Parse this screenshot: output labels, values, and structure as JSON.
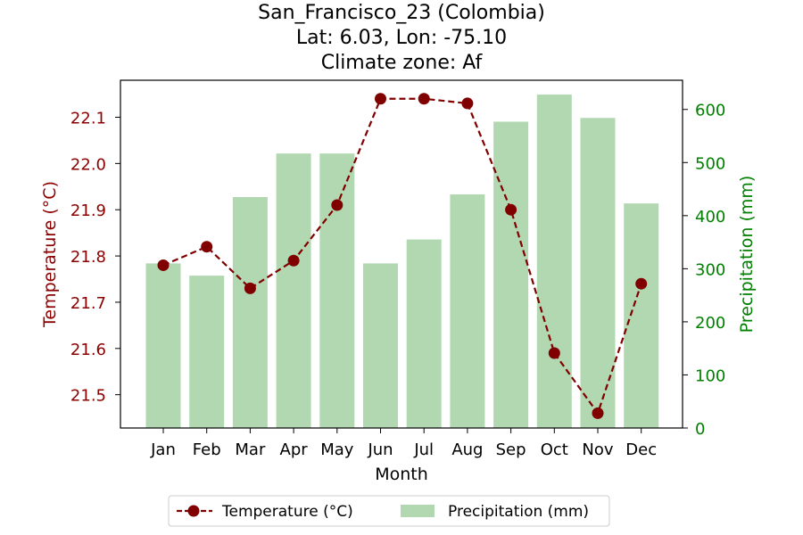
{
  "chart_data": {
    "type": "bar+line",
    "title_lines": [
      "San_Francisco_23 (Colombia)",
      "Lat: 6.03, Lon: -75.10",
      "Climate zone: Af"
    ],
    "xlabel": "Month",
    "ylabel_left": "Temperature (°C)",
    "ylabel_right": "Precipitation (mm)",
    "categories": [
      "Jan",
      "Feb",
      "Mar",
      "Apr",
      "May",
      "Jun",
      "Jul",
      "Aug",
      "Sep",
      "Oct",
      "Nov",
      "Dec"
    ],
    "temperature": {
      "name": "Temperature (°C)",
      "values": [
        21.78,
        21.82,
        21.73,
        21.79,
        21.91,
        22.14,
        22.14,
        22.13,
        21.9,
        21.59,
        21.46,
        21.74
      ],
      "color": "#800000",
      "style": "dashed line with circle markers"
    },
    "precipitation": {
      "name": "Precipitation (mm)",
      "values": [
        310,
        287,
        435,
        517,
        517,
        310,
        355,
        440,
        577,
        628,
        584,
        423
      ],
      "color": "#b2d8b2"
    },
    "ylim_left": [
      21.428,
      22.18
    ],
    "ylim_right": [
      0,
      655
    ],
    "yticks_left": [
      "21.5",
      "21.6",
      "21.7",
      "21.8",
      "21.9",
      "22.0",
      "22.1"
    ],
    "yticks_right": [
      "0",
      "100",
      "200",
      "300",
      "400",
      "500",
      "600"
    ],
    "left_axis_color": "#8b0000",
    "right_axis_color": "#008000",
    "legend_position": "bottom-center"
  }
}
